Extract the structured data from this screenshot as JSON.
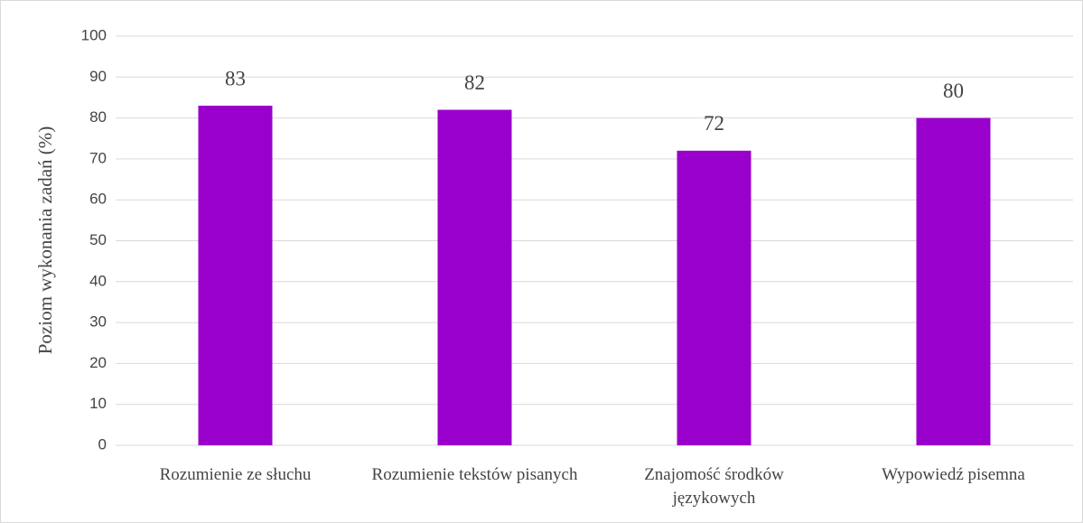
{
  "chart_data": {
    "type": "bar",
    "y_label": "Poziom wykonania zadań (%)",
    "categories": [
      "Rozumienie ze słuchu",
      "Rozumienie tekstów pisanych",
      "Znajomość środków językowych",
      "Wypowiedź pisemna"
    ],
    "values": [
      83,
      82,
      72,
      80
    ],
    "color": "#9900cc",
    "ylim": [
      0,
      100
    ],
    "yticks": [
      0,
      10,
      20,
      30,
      40,
      50,
      60,
      70,
      80,
      90,
      100
    ],
    "grid": true
  }
}
